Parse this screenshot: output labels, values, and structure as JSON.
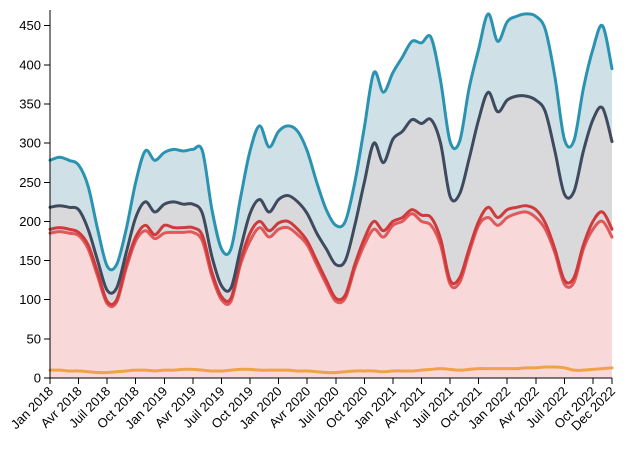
{
  "chart_data": {
    "type": "area",
    "x": [
      "2018-01",
      "2018-02",
      "2018-03",
      "2018-04",
      "2018-05",
      "2018-06",
      "2018-07",
      "2018-08",
      "2018-09",
      "2018-10",
      "2018-11",
      "2018-12",
      "2019-01",
      "2019-02",
      "2019-03",
      "2019-04",
      "2019-05",
      "2019-06",
      "2019-07",
      "2019-08",
      "2019-09",
      "2019-10",
      "2019-11",
      "2019-12",
      "2020-01",
      "2020-02",
      "2020-03",
      "2020-04",
      "2020-05",
      "2020-06",
      "2020-07",
      "2020-08",
      "2020-09",
      "2020-10",
      "2020-11",
      "2020-12",
      "2021-01",
      "2021-02",
      "2021-03",
      "2021-04",
      "2021-05",
      "2021-06",
      "2021-07",
      "2021-08",
      "2021-09",
      "2021-10",
      "2021-11",
      "2021-12",
      "2022-01",
      "2022-02",
      "2022-03",
      "2022-04",
      "2022-05",
      "2022-06",
      "2022-07",
      "2022-08",
      "2022-09",
      "2022-10",
      "2022-11",
      "2022-12"
    ],
    "x_tick_labels": [
      "Jan 2018",
      "Avr 2018",
      "Juil 2018",
      "Oct 2018",
      "Jan 2019",
      "Avr 2019",
      "Juil 2019",
      "Oct 2019",
      "Jan 2020",
      "Avr 2020",
      "Juil 2020",
      "Oct 2020",
      "Jan 2021",
      "Avr 2021",
      "Juil 2021",
      "Oct 2021",
      "Jan 2022",
      "Avr 2022",
      "Juil 2022",
      "Oct 2022",
      "Dec 2022"
    ],
    "y_ticks": [
      0,
      50,
      100,
      150,
      200,
      250,
      300,
      350,
      400,
      450
    ],
    "ylim": [
      0,
      470
    ],
    "grid": false,
    "series": [
      {
        "color": "#f0a24a",
        "fill": "none",
        "values": [
          10,
          10,
          9,
          9,
          8,
          7,
          7,
          8,
          9,
          10,
          10,
          9,
          10,
          10,
          11,
          11,
          10,
          9,
          9,
          10,
          11,
          11,
          10,
          10,
          10,
          10,
          9,
          9,
          8,
          7,
          7,
          8,
          9,
          9,
          9,
          8,
          9,
          9,
          9,
          10,
          11,
          12,
          11,
          10,
          11,
          12,
          12,
          12,
          12,
          12,
          13,
          13,
          14,
          14,
          13,
          10,
          10,
          11,
          12,
          13
        ]
      },
      {
        "color": "#e0585a",
        "fill": "#f8d8d8",
        "values": [
          185,
          187,
          185,
          182,
          165,
          130,
          95,
          97,
          140,
          175,
          188,
          178,
          185,
          186,
          186,
          186,
          175,
          130,
          100,
          98,
          145,
          175,
          192,
          180,
          190,
          192,
          183,
          170,
          145,
          120,
          98,
          102,
          140,
          170,
          190,
          180,
          195,
          200,
          210,
          200,
          195,
          170,
          120,
          122,
          160,
          195,
          205,
          195,
          205,
          210,
          212,
          205,
          190,
          160,
          120,
          122,
          165,
          190,
          200,
          180
        ]
      },
      {
        "color": "#cf3a3c",
        "fill": "none",
        "values": [
          190,
          192,
          190,
          186,
          170,
          135,
          98,
          100,
          145,
          180,
          195,
          183,
          195,
          192,
          192,
          192,
          182,
          135,
          104,
          102,
          150,
          185,
          200,
          188,
          198,
          200,
          190,
          175,
          150,
          125,
          102,
          106,
          145,
          178,
          200,
          188,
          200,
          205,
          215,
          208,
          205,
          178,
          125,
          128,
          165,
          200,
          218,
          205,
          215,
          218,
          220,
          215,
          198,
          165,
          125,
          128,
          170,
          200,
          212,
          190
        ]
      },
      {
        "color": "#3e4a5e",
        "fill": "#d9d9dc",
        "values": [
          218,
          220,
          218,
          215,
          190,
          150,
          112,
          115,
          160,
          205,
          225,
          212,
          222,
          225,
          222,
          222,
          210,
          155,
          118,
          115,
          165,
          210,
          228,
          212,
          228,
          233,
          225,
          210,
          185,
          165,
          145,
          150,
          195,
          250,
          300,
          275,
          305,
          315,
          330,
          325,
          330,
          300,
          232,
          235,
          280,
          330,
          365,
          340,
          355,
          360,
          360,
          355,
          340,
          290,
          235,
          238,
          290,
          330,
          345,
          302
        ]
      },
      {
        "color": "#2a93b2",
        "fill": "#cfe1e6",
        "values": [
          278,
          282,
          278,
          272,
          245,
          190,
          143,
          145,
          190,
          250,
          290,
          278,
          288,
          292,
          290,
          292,
          290,
          215,
          165,
          165,
          230,
          290,
          322,
          295,
          315,
          322,
          315,
          290,
          250,
          215,
          195,
          200,
          250,
          320,
          390,
          365,
          390,
          410,
          430,
          428,
          435,
          380,
          302,
          302,
          370,
          420,
          465,
          430,
          455,
          462,
          465,
          462,
          445,
          385,
          305,
          303,
          370,
          420,
          450,
          395
        ]
      }
    ]
  }
}
